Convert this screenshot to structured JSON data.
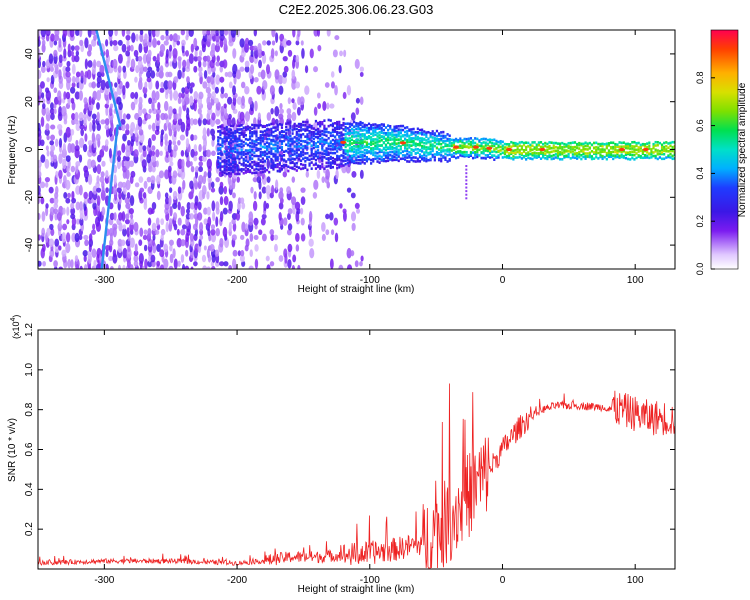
{
  "chart_data": [
    {
      "type": "heatmap",
      "title": "C2E2.2025.306.06.23.G03",
      "xlabel": "Height of straight line (km)",
      "ylabel": "Frequency (Hz)",
      "xlim": [
        -350,
        130
      ],
      "ylim": [
        -50,
        50
      ],
      "x_ticks": [
        -300,
        -200,
        -100,
        0,
        100
      ],
      "y_ticks": [
        -40,
        -20,
        0,
        20,
        40
      ],
      "colorbar": {
        "label": "Normalized spectral amplitude",
        "range": [
          0.0,
          1.0
        ],
        "ticks": [
          0.0,
          0.2,
          0.4,
          0.6,
          0.8
        ],
        "tick_labels": [
          "0.0",
          "0.2",
          "0.4",
          "0.6",
          "0.8"
        ]
      },
      "ridge": {
        "x": [
          -210,
          -180,
          -150,
          -120,
          -100,
          -80,
          -60,
          -40,
          -20,
          0,
          30,
          60,
          90,
          130
        ],
        "frequency": [
          0,
          1,
          2,
          3,
          3,
          3,
          2,
          1,
          1,
          0,
          0,
          0,
          0,
          0
        ]
      }
    },
    {
      "type": "line",
      "title": "",
      "xlabel": "Height of straight line (km)",
      "ylabel": "SNR (10 * v/v)",
      "y_multiplier_label": "(x10",
      "y_multiplier_exp": "4",
      "xlim": [
        -350,
        130
      ],
      "ylim": [
        0,
        1.2
      ],
      "x_ticks": [
        -300,
        -200,
        -100,
        0,
        100
      ],
      "y_ticks": [
        0.2,
        0.4,
        0.6,
        0.8,
        1.0,
        1.2
      ],
      "y_tick_labels": [
        "0.2",
        "0.4",
        "0.6",
        "0.8",
        "1.0",
        "1.2"
      ],
      "series": [
        {
          "name": "SNR",
          "color": "#ee2222",
          "x": [
            -350,
            -300,
            -250,
            -200,
            -180,
            -160,
            -140,
            -120,
            -100,
            -80,
            -60,
            -50,
            -40,
            -30,
            -20,
            -10,
            0,
            10,
            20,
            30,
            40,
            60,
            80,
            90,
            100,
            110,
            120,
            130
          ],
          "values": [
            0.03,
            0.04,
            0.04,
            0.03,
            0.04,
            0.06,
            0.06,
            0.07,
            0.08,
            0.1,
            0.13,
            0.18,
            0.25,
            0.33,
            0.42,
            0.5,
            0.6,
            0.69,
            0.76,
            0.8,
            0.82,
            0.82,
            0.81,
            0.8,
            0.78,
            0.76,
            0.76,
            0.75
          ]
        }
      ]
    }
  ]
}
